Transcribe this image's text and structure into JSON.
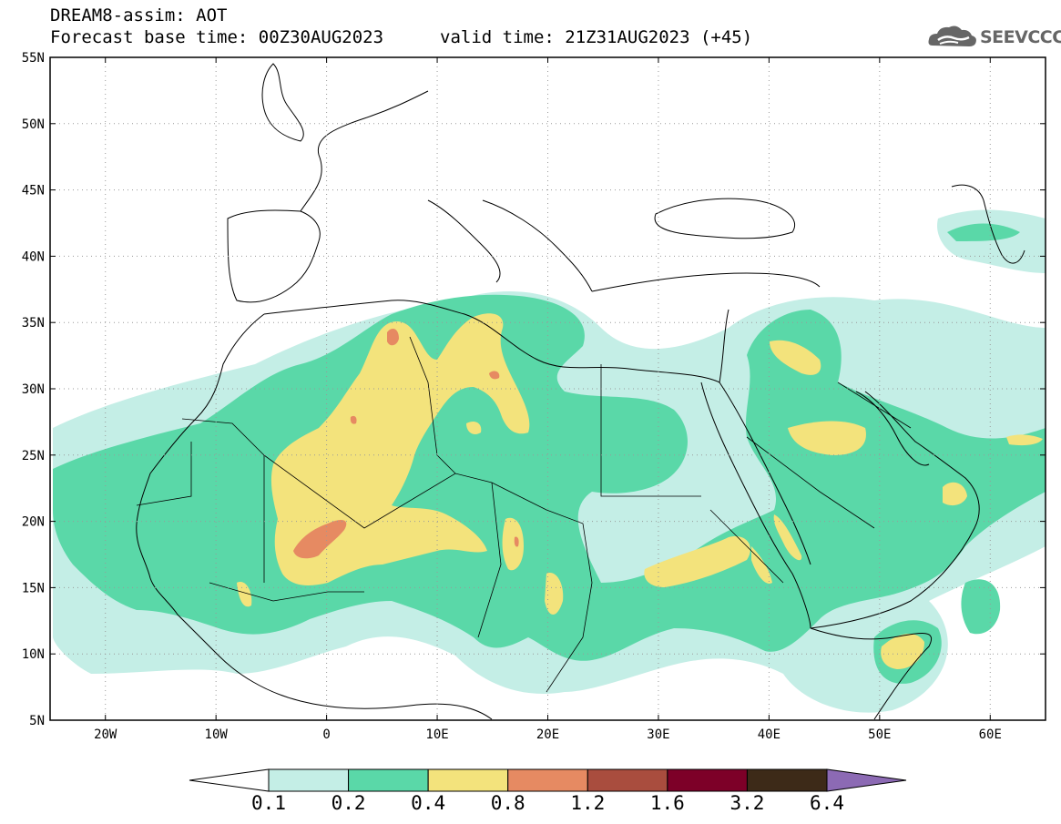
{
  "header": {
    "title_line_1": "DREAM8-assim: AOT",
    "title_line_2": "Forecast base time: 00Z30AUG2023",
    "valid_time": "valid time: 21Z31AUG2023 (+45)",
    "logo_text": "SEEVCCC",
    "logo_icon": "cloud-icon"
  },
  "map": {
    "variable": "AOT",
    "lon_range": [
      -25,
      65
    ],
    "lat_range": [
      5,
      55
    ],
    "grid": "dotted",
    "lat_ticks": [
      {
        "value": 55,
        "label": "55N"
      },
      {
        "value": 50,
        "label": "50N"
      },
      {
        "value": 45,
        "label": "45N"
      },
      {
        "value": 40,
        "label": "40N"
      },
      {
        "value": 35,
        "label": "35N"
      },
      {
        "value": 30,
        "label": "30N"
      },
      {
        "value": 25,
        "label": "25N"
      },
      {
        "value": 20,
        "label": "20N"
      },
      {
        "value": 15,
        "label": "15N"
      },
      {
        "value": 10,
        "label": "10N"
      },
      {
        "value": 5,
        "label": "5N"
      }
    ],
    "lon_ticks": [
      {
        "value": -20,
        "label": "20W"
      },
      {
        "value": -10,
        "label": "10W"
      },
      {
        "value": 0,
        "label": "0"
      },
      {
        "value": 10,
        "label": "10E"
      },
      {
        "value": 20,
        "label": "20E"
      },
      {
        "value": 30,
        "label": "30E"
      },
      {
        "value": 40,
        "label": "40E"
      },
      {
        "value": 50,
        "label": "50E"
      },
      {
        "value": 60,
        "label": "60E"
      }
    ]
  },
  "colorbar": {
    "levels": [
      "0.1",
      "0.2",
      "0.4",
      "0.8",
      "1.2",
      "1.6",
      "3.2",
      "6.4"
    ],
    "colors": [
      "#ffffff",
      "#c4eee6",
      "#5ad8a8",
      "#f3e37c",
      "#e68a62",
      "#a94d3e",
      "#7d0028",
      "#3d2a18",
      "#8c6ab4"
    ]
  }
}
